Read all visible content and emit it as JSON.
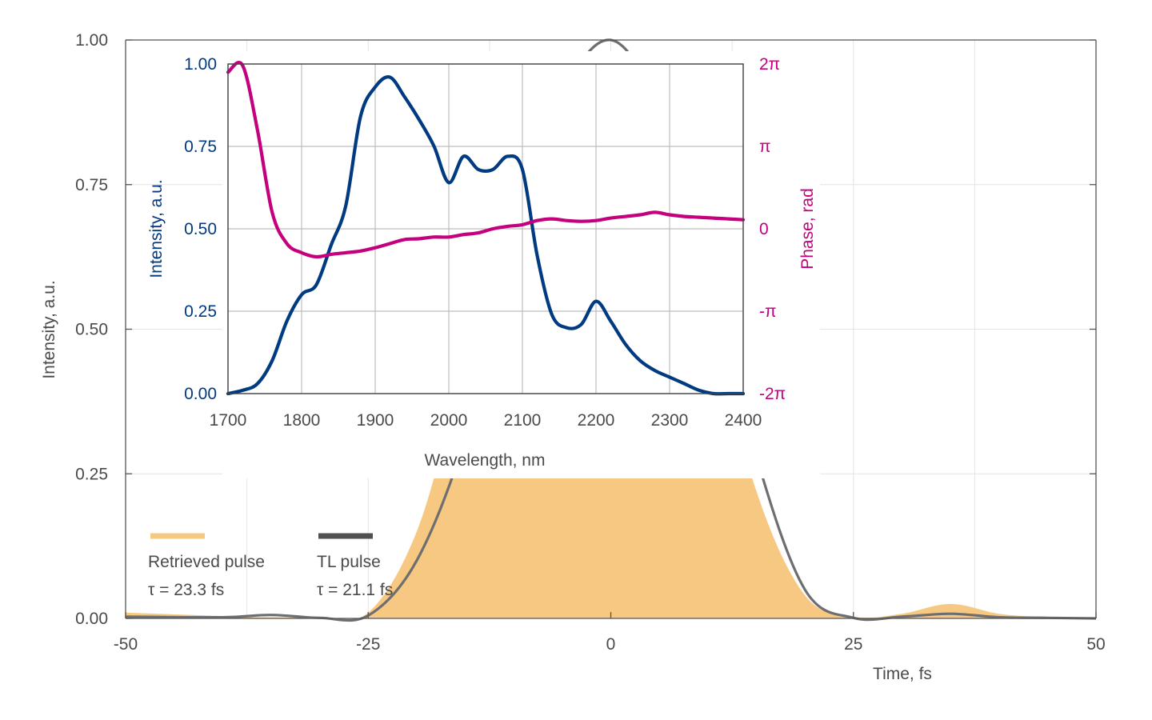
{
  "chart_data": [
    {
      "type": "area",
      "xlabel": "Time, fs",
      "ylabel": "Intensity, a.u.",
      "xlim": [
        -50,
        50
      ],
      "ylim": [
        0,
        1
      ],
      "x_ticks": [
        "-50",
        "-25",
        "0",
        "25",
        "50"
      ],
      "y_ticks": [
        "0.00",
        "0.25",
        "0.50",
        "0.75",
        "1.00"
      ],
      "legend_position": "bottom-left",
      "series": [
        {
          "name": "Retrieved pulse",
          "annotation": "τ = 23.3 fs",
          "color": "#f7c882",
          "x": [
            -50,
            -40,
            -35,
            -30,
            -25,
            -20,
            -15,
            -10,
            -5,
            0,
            5,
            10,
            15,
            20,
            25,
            30,
            35,
            40,
            45,
            50
          ],
          "y": [
            0.01,
            0.004,
            0.002,
            0.003,
            0.01,
            0.15,
            0.43,
            0.63,
            0.76,
            0.82,
            0.79,
            0.54,
            0.22,
            0.04,
            0.003,
            0.008,
            0.025,
            0.008,
            0.002,
            0
          ]
        },
        {
          "name": "TL pulse",
          "annotation": "τ = 21.1 fs",
          "color": "#6e6e70",
          "x": [
            -50,
            -40,
            -35,
            -30,
            -25,
            -20,
            -15,
            -10,
            -5,
            0,
            5,
            10,
            15,
            20,
            25,
            30,
            35,
            40,
            45,
            50
          ],
          "y": [
            0.003,
            0.002,
            0.006,
            0.001,
            0.005,
            0.1,
            0.31,
            0.62,
            0.9,
            1.0,
            0.88,
            0.62,
            0.28,
            0.05,
            0.001,
            0.003,
            0.008,
            0.002,
            0.001,
            0
          ]
        }
      ]
    },
    {
      "type": "line",
      "xlabel": "Wavelength, nm",
      "ylabel": "Intensity, a.u.",
      "y2label": "Phase, rad",
      "xlim": [
        1700,
        2400
      ],
      "ylim": [
        0,
        1
      ],
      "y2lim": [
        "-2π",
        "2π"
      ],
      "x_ticks": [
        "1700",
        "1800",
        "1900",
        "2000",
        "2100",
        "2200",
        "2300",
        "2400"
      ],
      "y_ticks": [
        "0.00",
        "0.25",
        "0.50",
        "0.75",
        "1.00"
      ],
      "y2_ticks": [
        "-2π",
        "-π",
        "0",
        "π",
        "2π"
      ],
      "series": [
        {
          "axis": "left",
          "color": "#003a80",
          "x": [
            1700,
            1720,
            1740,
            1760,
            1780,
            1800,
            1820,
            1840,
            1860,
            1880,
            1900,
            1920,
            1940,
            1960,
            1980,
            2000,
            2020,
            2040,
            2060,
            2080,
            2100,
            2120,
            2140,
            2160,
            2180,
            2200,
            2220,
            2240,
            2260,
            2280,
            2300,
            2320,
            2340,
            2360,
            2380,
            2400
          ],
          "y": [
            0.0,
            0.01,
            0.03,
            0.1,
            0.22,
            0.3,
            0.33,
            0.45,
            0.57,
            0.84,
            0.93,
            0.96,
            0.9,
            0.83,
            0.75,
            0.64,
            0.72,
            0.68,
            0.68,
            0.72,
            0.68,
            0.42,
            0.24,
            0.2,
            0.21,
            0.28,
            0.22,
            0.15,
            0.1,
            0.07,
            0.05,
            0.03,
            0.01,
            0.0,
            0.0,
            0.0
          ]
        },
        {
          "axis": "right",
          "color": "#c4007e",
          "x": [
            1700,
            1720,
            1740,
            1760,
            1780,
            1800,
            1820,
            1840,
            1860,
            1880,
            1900,
            1920,
            1940,
            1960,
            1980,
            2000,
            2020,
            2040,
            2060,
            2080,
            2100,
            2120,
            2140,
            2160,
            2180,
            2200,
            2220,
            2240,
            2260,
            2280,
            2300,
            2320,
            2340,
            2360,
            2380,
            2400
          ],
          "y": [
            1.9,
            1.98,
            1.2,
            0.2,
            -0.18,
            -0.29,
            -0.34,
            -0.31,
            -0.29,
            -0.27,
            -0.23,
            -0.18,
            -0.13,
            -0.12,
            -0.1,
            -0.1,
            -0.07,
            -0.05,
            0.0,
            0.03,
            0.05,
            0.1,
            0.12,
            0.1,
            0.09,
            0.1,
            0.13,
            0.15,
            0.17,
            0.2,
            0.17,
            0.15,
            0.14,
            0.13,
            0.12,
            0.11
          ]
        }
      ]
    }
  ]
}
